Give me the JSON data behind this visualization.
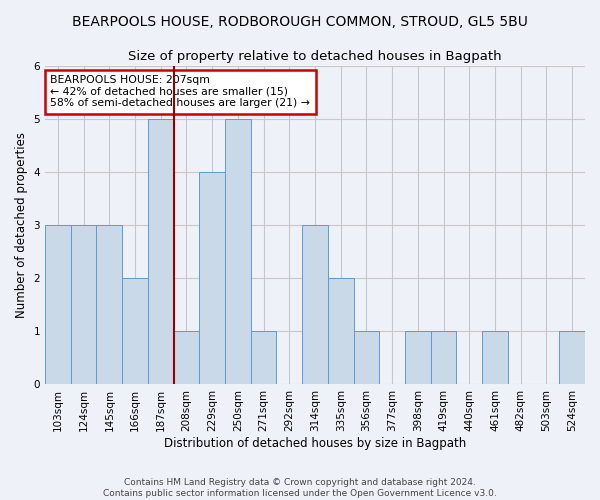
{
  "title": "BEARPOOLS HOUSE, RODBOROUGH COMMON, STROUD, GL5 5BU",
  "subtitle": "Size of property relative to detached houses in Bagpath",
  "xlabel": "Distribution of detached houses by size in Bagpath",
  "ylabel": "Number of detached properties",
  "footer_line1": "Contains HM Land Registry data © Crown copyright and database right 2024.",
  "footer_line2": "Contains public sector information licensed under the Open Government Licence v3.0.",
  "categories": [
    "103sqm",
    "124sqm",
    "145sqm",
    "166sqm",
    "187sqm",
    "208sqm",
    "229sqm",
    "250sqm",
    "271sqm",
    "292sqm",
    "314sqm",
    "335sqm",
    "356sqm",
    "377sqm",
    "398sqm",
    "419sqm",
    "440sqm",
    "461sqm",
    "482sqm",
    "503sqm",
    "524sqm"
  ],
  "values": [
    3,
    3,
    3,
    2,
    5,
    1,
    4,
    5,
    1,
    0,
    3,
    2,
    1,
    0,
    1,
    1,
    0,
    1,
    0,
    0,
    1
  ],
  "bar_color": "#c9d9e8",
  "bar_edge_color": "#5b9bd5",
  "highlight_line_index": 5,
  "highlight_line_color": "#990000",
  "annotation_text": "BEARPOOLS HOUSE: 207sqm\n← 42% of detached houses are smaller (15)\n58% of semi-detached houses are larger (21) →",
  "annotation_box_color": "#ffffff",
  "annotation_box_edge_color": "#cc0000",
  "ylim": [
    0,
    6
  ],
  "yticks": [
    0,
    1,
    2,
    3,
    4,
    5,
    6
  ],
  "grid_color": "#c8c8c8",
  "background_color": "#eef2f8",
  "title_fontsize": 10,
  "subtitle_fontsize": 9.5,
  "xlabel_fontsize": 8.5,
  "ylabel_fontsize": 8.5,
  "tick_fontsize": 7.5,
  "footer_fontsize": 6.5
}
